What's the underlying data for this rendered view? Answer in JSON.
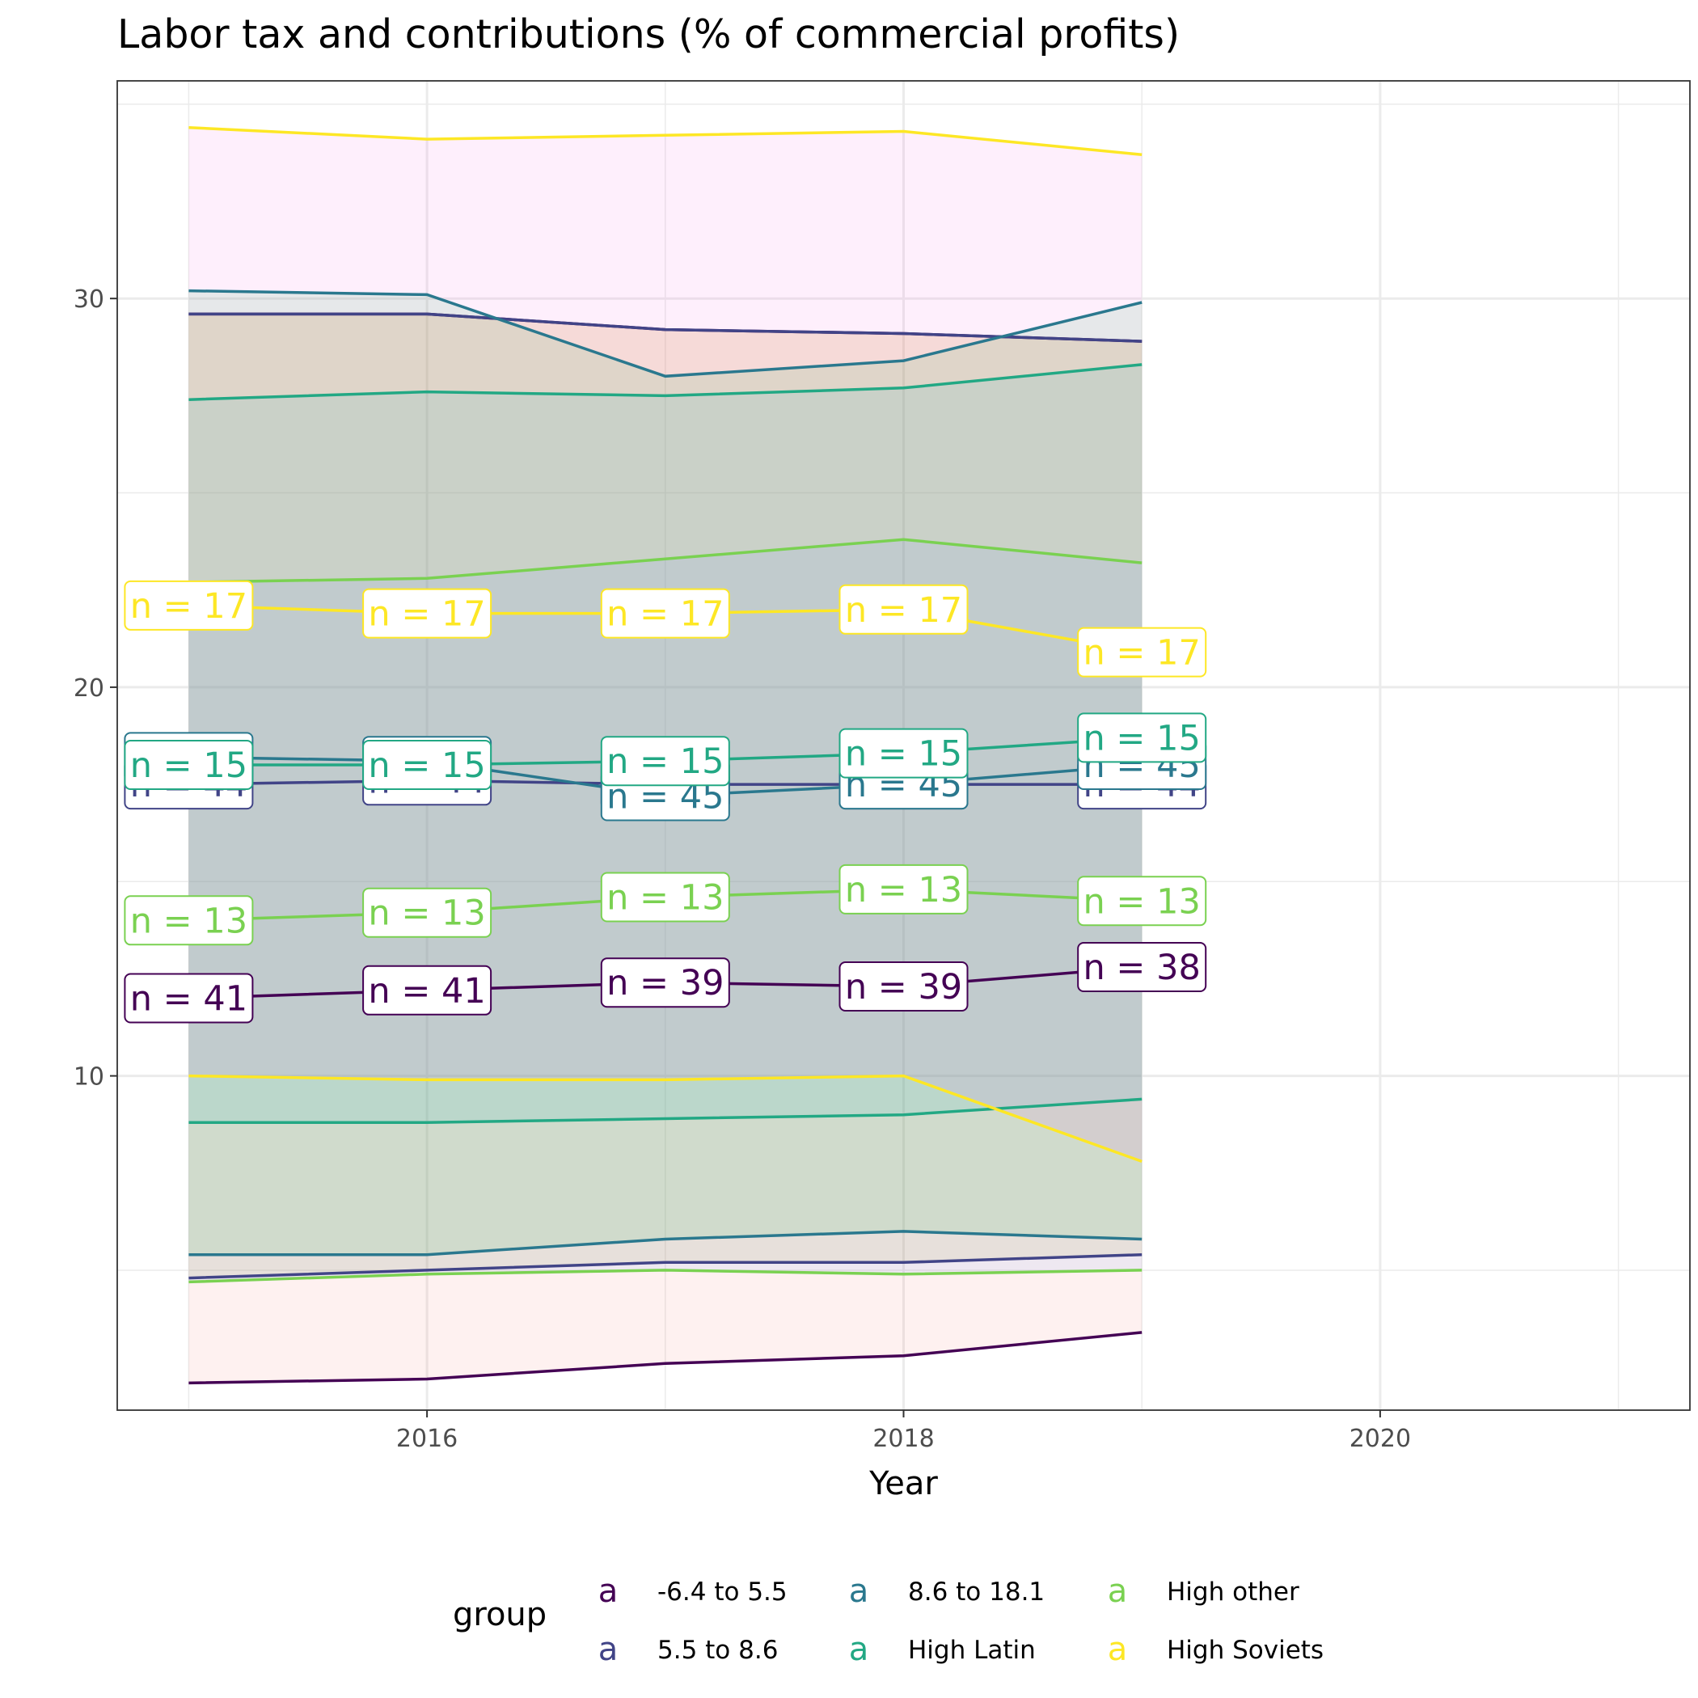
{
  "chart_data": {
    "type": "line",
    "title": "Labor tax and contributions (% of commercial profits)",
    "xlabel": "Year",
    "ylabel": "",
    "xlim": [
      2014.7,
      2021.3
    ],
    "ylim": [
      1.4,
      35.6
    ],
    "x_ticks": [
      2016,
      2018,
      2020
    ],
    "y_ticks": [
      10,
      20,
      30
    ],
    "grid": true,
    "legend": {
      "title": "group",
      "placement": "bottom",
      "key_glyph": "a"
    },
    "x": [
      2015,
      2016,
      2017,
      2018,
      2019
    ],
    "series": [
      {
        "name": "-6.4 to 5.5",
        "color": "#440154",
        "fill": "#F8766D",
        "values": [
          12.0,
          12.2,
          12.4,
          12.3,
          12.8
        ],
        "upper": [
          29.6,
          29.6,
          29.2,
          29.1,
          28.9
        ],
        "lower": [
          2.1,
          2.2,
          2.6,
          2.8,
          3.4
        ],
        "n_labels": [
          "n = 41",
          "n = 41",
          "n = 39",
          "n = 39",
          "n = 38"
        ]
      },
      {
        "name": "5.5 to 8.6",
        "color": "#414487",
        "fill": "#B79F00",
        "values": [
          17.5,
          17.6,
          17.5,
          17.5,
          17.5
        ],
        "upper": [
          29.6,
          29.6,
          29.2,
          29.1,
          28.9
        ],
        "lower": [
          4.8,
          5.0,
          5.2,
          5.2,
          5.4
        ],
        "n_labels": [
          "n = 44",
          "n = 44",
          "n = 44",
          "n = 44",
          "n = 44"
        ]
      },
      {
        "name": "8.6 to 18.1",
        "color": "#2A788E",
        "fill": "#00BA38",
        "values": [
          18.2,
          18.1,
          17.2,
          17.5,
          18.0
        ],
        "upper": [
          30.2,
          30.1,
          28.0,
          28.4,
          29.9
        ],
        "lower": [
          5.4,
          5.4,
          5.8,
          6.0,
          5.8
        ],
        "n_labels": [
          "n = 45",
          "n = 45",
          "n = 45",
          "n = 45",
          "n = 45"
        ]
      },
      {
        "name": "High Latin",
        "color": "#22A884",
        "fill": "#00BFC4",
        "values": [
          18.0,
          18.0,
          18.1,
          18.3,
          18.7
        ],
        "upper": [
          27.4,
          27.6,
          27.5,
          27.7,
          28.3
        ],
        "lower": [
          8.8,
          8.8,
          8.9,
          9.0,
          9.4
        ],
        "n_labels": [
          "n = 15",
          "n = 15",
          "n = 15",
          "n = 15",
          "n = 15"
        ]
      },
      {
        "name": "High other",
        "color": "#7AD151",
        "fill": "#619CFF",
        "values": [
          14.0,
          14.2,
          14.6,
          14.8,
          14.5
        ],
        "upper": [
          22.7,
          22.8,
          23.3,
          23.8,
          23.2
        ],
        "lower": [
          4.7,
          4.9,
          5.0,
          4.9,
          5.0
        ],
        "n_labels": [
          "n = 13",
          "n = 13",
          "n = 13",
          "n = 13",
          "n = 13"
        ]
      },
      {
        "name": "High Soviets",
        "color": "#FDE725",
        "fill": "#F564E3",
        "values": [
          22.1,
          21.9,
          21.9,
          22.0,
          20.9
        ],
        "upper": [
          34.4,
          34.1,
          34.2,
          34.3,
          33.7
        ],
        "lower": [
          10.0,
          9.9,
          9.9,
          10.0,
          7.8
        ],
        "n_labels": [
          "n = 17",
          "n = 17",
          "n = 17",
          "n = 17",
          "n = 17"
        ]
      }
    ]
  }
}
